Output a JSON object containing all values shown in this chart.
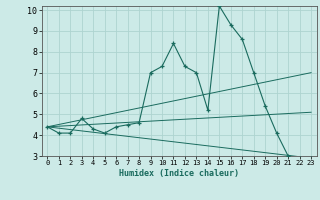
{
  "xlabel": "Humidex (Indice chaleur)",
  "bg_color": "#cceae7",
  "grid_color": "#aed4d0",
  "line_color": "#1a6b5e",
  "xlim": [
    -0.5,
    23.5
  ],
  "ylim": [
    3,
    10.2
  ],
  "xticks": [
    0,
    1,
    2,
    3,
    4,
    5,
    6,
    7,
    8,
    9,
    10,
    11,
    12,
    13,
    14,
    15,
    16,
    17,
    18,
    19,
    20,
    21,
    22,
    23
  ],
  "yticks": [
    3,
    4,
    5,
    6,
    7,
    8,
    9,
    10
  ],
  "series": [
    {
      "x": [
        0,
        1,
        2,
        3,
        4,
        5,
        6,
        7,
        8,
        9,
        10,
        11,
        12,
        13,
        14,
        15,
        16,
        17,
        18,
        19,
        20,
        21,
        22,
        23
      ],
      "y": [
        4.4,
        4.1,
        4.1,
        4.8,
        4.3,
        4.1,
        4.4,
        4.5,
        4.6,
        7.0,
        7.3,
        8.4,
        7.3,
        7.0,
        5.2,
        10.2,
        9.3,
        8.6,
        7.0,
        5.4,
        4.1,
        3.0,
        2.9,
        2.9
      ],
      "markers": true
    },
    {
      "x": [
        0,
        23
      ],
      "y": [
        4.4,
        7.0
      ],
      "markers": false
    },
    {
      "x": [
        0,
        23
      ],
      "y": [
        4.4,
        5.1
      ],
      "markers": false
    },
    {
      "x": [
        0,
        23
      ],
      "y": [
        4.4,
        2.9
      ],
      "markers": false
    }
  ]
}
